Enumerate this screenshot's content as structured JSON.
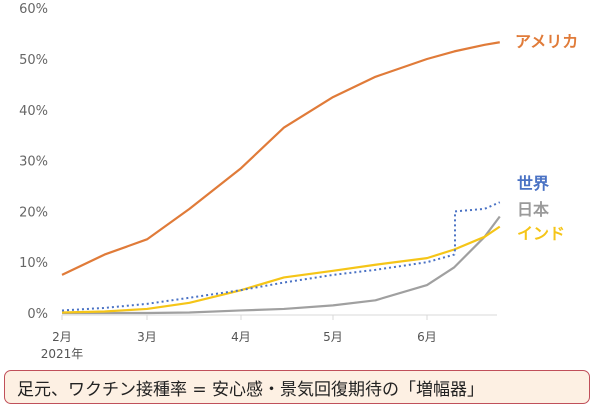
{
  "chart_data": {
    "type": "line",
    "title": "",
    "xlabel": "",
    "ylabel": "",
    "ylim": [
      0,
      60
    ],
    "yticks": [
      "0%",
      "10%",
      "20%",
      "30%",
      "40%",
      "50%",
      "60%"
    ],
    "xticks": [
      "2月",
      "3月",
      "4月",
      "5月",
      "6月"
    ],
    "x_sublabel": "2021年",
    "grid": false,
    "legend_position": "right, inline labels",
    "x": [
      "2/1",
      "2/15",
      "3/1",
      "3/15",
      "4/1",
      "4/15",
      "5/1",
      "5/15",
      "6/1",
      "6/10",
      "6/20",
      "6/25"
    ],
    "series": [
      {
        "name": "アメリカ",
        "color": "#e07b39",
        "style": "solid",
        "values": [
          7.5,
          11.5,
          14.5,
          20.5,
          28.5,
          36.5,
          42.5,
          46.5,
          50.0,
          51.5,
          52.8,
          53.3
        ]
      },
      {
        "name": "世界",
        "color": "#4a72c4",
        "style": "dotted",
        "values": [
          0.5,
          1.0,
          1.8,
          3.0,
          4.5,
          6.0,
          7.5,
          8.5,
          10.0,
          11.5,
          20.5,
          21.8
        ]
      },
      {
        "name": "日本",
        "color": "#a0a0a0",
        "style": "solid",
        "values": [
          0.0,
          0.0,
          0.0,
          0.1,
          0.5,
          0.8,
          1.5,
          2.5,
          5.5,
          9.0,
          15.0,
          19.0
        ]
      },
      {
        "name": "インド",
        "color": "#f5c518",
        "style": "solid",
        "values": [
          0.1,
          0.3,
          0.8,
          2.0,
          4.5,
          7.0,
          8.3,
          9.5,
          10.8,
          12.5,
          15.0,
          17.0
        ]
      }
    ]
  },
  "labels": {
    "america": "アメリカ",
    "world": "世界",
    "japan": "日本",
    "india": "インド"
  },
  "caption": "足元、ワクチン接種率 = 安心感・景気回復期待の「増幅器」"
}
